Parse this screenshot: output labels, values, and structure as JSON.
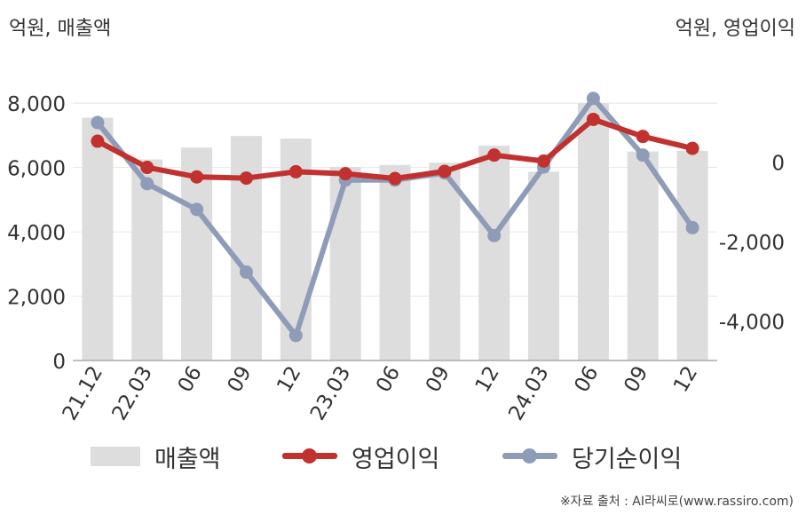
{
  "units": {
    "left": "억원, 매출액",
    "right": "억원, 영업이익"
  },
  "source_note": "※자료 출처 : AI라씨로(www.rassiro.com)",
  "colors": {
    "revenue": "#dddddd",
    "operating_profit": "#c0312f",
    "net_income": "#8f9cb8",
    "axis": "#aaaaaa",
    "grid": "#e6e6e6"
  },
  "chart_data": {
    "type": "bar",
    "categories": [
      "21.12",
      "22.03",
      "06",
      "09",
      "12",
      "23.03",
      "06",
      "09",
      "12",
      "24.03",
      "06",
      "09",
      "12"
    ],
    "left_axis": {
      "ylim": [
        0,
        9000
      ],
      "ticks": [
        0,
        2000,
        4000,
        6000,
        8000
      ],
      "tick_labels": [
        "0",
        "2,000",
        "4,000",
        "6,000",
        "8,000"
      ]
    },
    "right_axis": {
      "ylim": [
        -5000,
        2300
      ],
      "ticks": [
        -4000,
        -2000,
        0
      ],
      "tick_labels": [
        "-4,000",
        "-2,000",
        "0"
      ]
    },
    "series": [
      {
        "name": "매출액",
        "type": "bar",
        "axis": "left",
        "values": [
          7550,
          6250,
          6620,
          6980,
          6900,
          6020,
          6080,
          6150,
          6680,
          5870,
          8000,
          6500,
          6520
        ]
      },
      {
        "name": "영업이익",
        "type": "line",
        "axis": "right",
        "values": [
          530,
          -130,
          -370,
          -400,
          -240,
          -290,
          -410,
          -230,
          180,
          30,
          1080,
          650,
          350
        ]
      },
      {
        "name": "당기순이익",
        "type": "line",
        "axis": "right",
        "values": [
          1000,
          -540,
          -1190,
          -2770,
          -4370,
          -450,
          -450,
          -270,
          -1850,
          -120,
          1610,
          180,
          -1650
        ]
      }
    ],
    "legend": [
      "매출액",
      "영업이익",
      "당기순이익"
    ],
    "legend_position": "bottom",
    "grid": true
  }
}
